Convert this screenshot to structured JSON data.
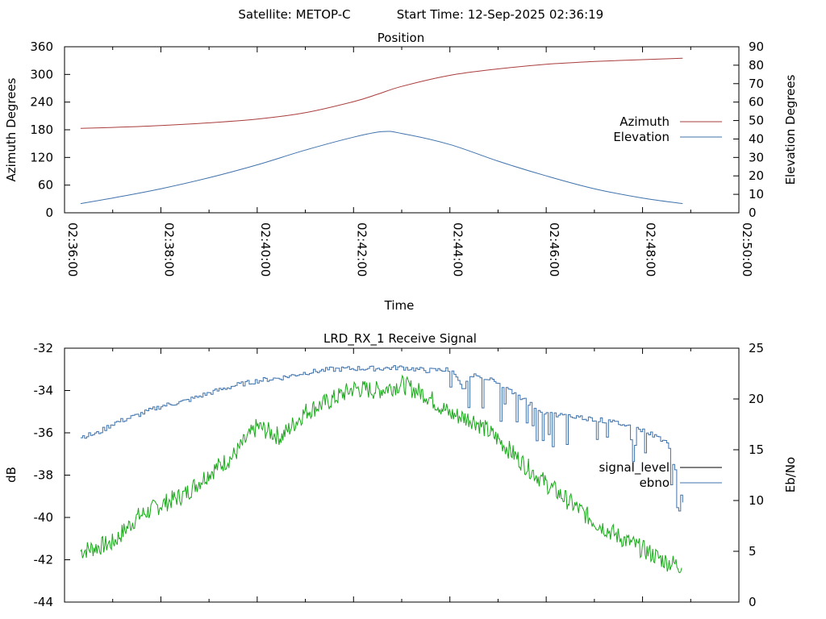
{
  "header": {
    "satellite_label": "Satellite: METOP-C",
    "start_time_label": "Start Time: 12-Sep-2025 02:36:19"
  },
  "colors": {
    "azimuth": "#aa3d3d",
    "elevation": "#3f72ac",
    "signal_level_legend": "#000000",
    "signal_level_line": "#1aa81a",
    "ebno": "#3f72ac"
  },
  "chart_data": [
    {
      "type": "line",
      "title": "Position",
      "xlabel": "Time",
      "ylabel": "Azimuth Degrees",
      "y2label": "Elevation Degrees",
      "x_tick_labels": [
        "02:36:00",
        "02:38:00",
        "02:40:00",
        "02:42:00",
        "02:44:00",
        "02:46:00",
        "02:48:00",
        "02:50:00"
      ],
      "xlim": [
        "02:36:00",
        "02:50:00"
      ],
      "ylim": [
        0,
        360
      ],
      "y_ticks": [
        0,
        60,
        120,
        180,
        240,
        300,
        360
      ],
      "y2lim": [
        0,
        90
      ],
      "y2_ticks": [
        0,
        10,
        20,
        30,
        40,
        50,
        60,
        70,
        80,
        90
      ],
      "grid": false,
      "legend_position": "right",
      "series": [
        {
          "name": "Azimuth",
          "axis": "left",
          "x": [
            "02:36:20",
            "02:37:00",
            "02:38:00",
            "02:39:00",
            "02:40:00",
            "02:41:00",
            "02:42:00",
            "02:42:30",
            "02:43:00",
            "02:44:00",
            "02:45:00",
            "02:46:00",
            "02:47:00",
            "02:48:00",
            "02:48:50"
          ],
          "values": [
            183,
            185,
            189,
            195,
            203,
            217,
            241,
            257,
            274,
            298,
            312,
            322,
            328,
            332,
            335
          ]
        },
        {
          "name": "Elevation",
          "axis": "right",
          "x": [
            "02:36:20",
            "02:37:00",
            "02:38:00",
            "02:39:00",
            "02:40:00",
            "02:41:00",
            "02:42:00",
            "02:42:36",
            "02:43:00",
            "02:44:00",
            "02:45:00",
            "02:46:00",
            "02:47:00",
            "02:48:00",
            "02:48:50"
          ],
          "values": [
            5,
            8,
            13,
            19,
            26,
            34,
            41,
            44,
            43,
            37,
            28,
            20,
            13,
            8,
            5
          ]
        }
      ]
    },
    {
      "type": "line",
      "title": "LRD_RX_1 Receive Signal",
      "ylabel": "dB",
      "y2label": "Eb/No",
      "xlim": [
        "02:36:00",
        "02:50:00"
      ],
      "ylim": [
        -44,
        -32
      ],
      "y_ticks": [
        -44,
        -42,
        -40,
        -38,
        -36,
        -34,
        -32
      ],
      "y2lim": [
        0,
        25
      ],
      "y2_ticks": [
        0,
        5,
        10,
        15,
        20,
        25
      ],
      "grid": false,
      "legend_position": "right",
      "series": [
        {
          "name": "signal_level",
          "axis": "left",
          "x": [
            "02:36:20",
            "02:37:00",
            "02:37:30",
            "02:38:00",
            "02:38:30",
            "02:39:00",
            "02:39:30",
            "02:40:00",
            "02:40:30",
            "02:41:00",
            "02:41:30",
            "02:42:00",
            "02:42:30",
            "02:43:00",
            "02:43:30",
            "02:44:00",
            "02:44:30",
            "02:45:00",
            "02:45:30",
            "02:46:00",
            "02:46:30",
            "02:47:00",
            "02:47:30",
            "02:48:00",
            "02:48:30",
            "02:48:50"
          ],
          "values": [
            -41.6,
            -41.2,
            -40.0,
            -39.4,
            -38.9,
            -37.9,
            -37.1,
            -35.7,
            -36.2,
            -35.0,
            -34.5,
            -33.9,
            -34.0,
            -33.7,
            -34.2,
            -35.1,
            -35.4,
            -36.3,
            -37.4,
            -38.4,
            -39.3,
            -40.2,
            -40.9,
            -41.5,
            -42.1,
            -42.3
          ]
        },
        {
          "name": "ebno",
          "axis": "right",
          "x": [
            "02:36:20",
            "02:36:40",
            "02:37:00",
            "02:37:30",
            "02:38:00",
            "02:38:30",
            "02:39:00",
            "02:39:30",
            "02:40:00",
            "02:40:30",
            "02:41:00",
            "02:41:30",
            "02:42:00",
            "02:42:30",
            "02:43:00",
            "02:43:30",
            "02:44:00",
            "02:44:15",
            "02:44:30",
            "02:45:00",
            "02:45:30",
            "02:46:00",
            "02:46:30",
            "02:47:00",
            "02:47:30",
            "02:48:00",
            "02:48:30",
            "02:48:50"
          ],
          "values": [
            16.3,
            16.6,
            17.6,
            18.4,
            19.3,
            19.8,
            20.6,
            21.3,
            21.8,
            22.1,
            22.6,
            22.9,
            23.0,
            23.0,
            23.1,
            22.8,
            22.9,
            21.0,
            22.6,
            21.5,
            20.0,
            18.5,
            18.3,
            18.0,
            17.6,
            16.9,
            15.8,
            10.0
          ]
        }
      ]
    }
  ]
}
